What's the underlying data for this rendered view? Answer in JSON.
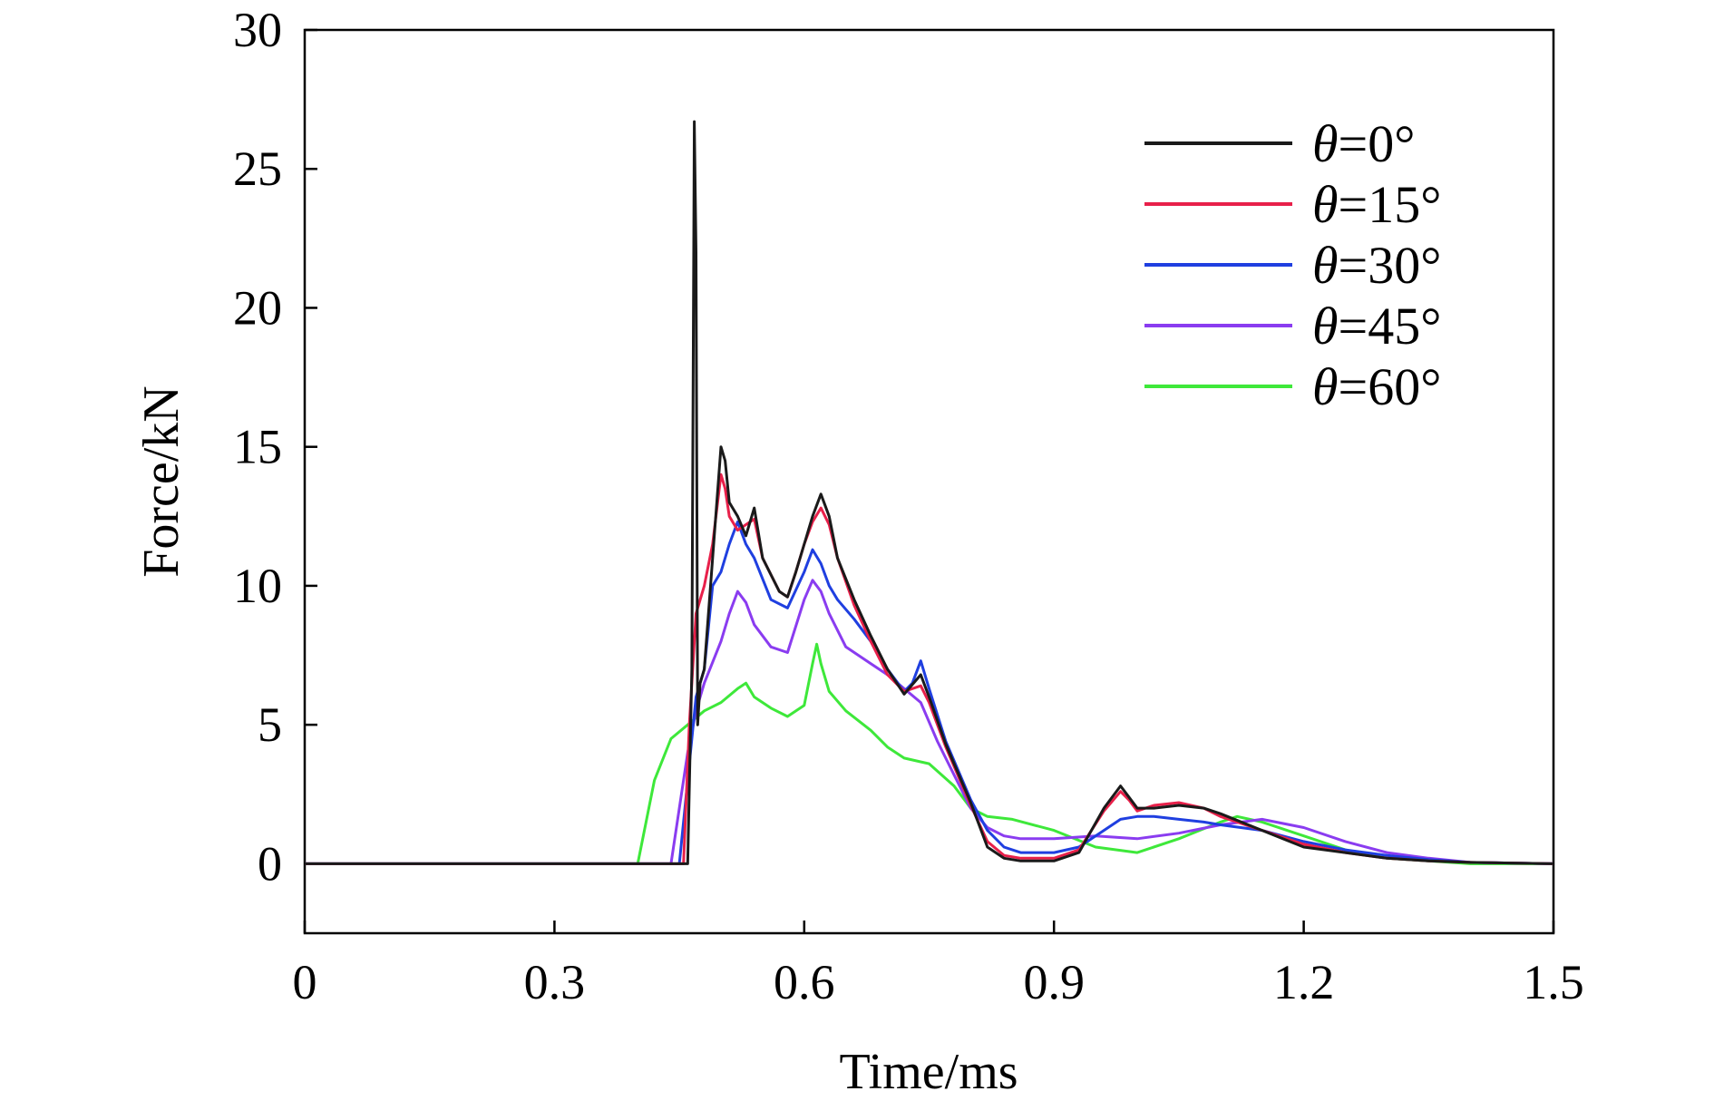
{
  "chart_data": {
    "type": "line",
    "title": "",
    "xlabel": "Time/ms",
    "ylabel": "Force/kN",
    "xlim": [
      0,
      1.5
    ],
    "ylim": [
      -2.5,
      30
    ],
    "xticks": [
      "0",
      "0.3",
      "0.6",
      "0.9",
      "1.2",
      "1.5"
    ],
    "xtick_values": [
      0,
      0.3,
      0.6,
      0.9,
      1.2,
      1.5
    ],
    "yticks": [
      "0",
      "5",
      "10",
      "15",
      "20",
      "25",
      "30"
    ],
    "ytick_values": [
      0,
      5,
      10,
      15,
      20,
      25,
      30
    ],
    "grid": false,
    "legend_position": "top-right",
    "series": [
      {
        "name": "θ=0°",
        "symbol": "θ",
        "value_text": "=0°",
        "color": "#1a1a1a",
        "x": [
          0,
          0.46,
          0.465,
          0.468,
          0.47,
          0.472,
          0.475,
          0.48,
          0.49,
          0.5,
          0.505,
          0.51,
          0.52,
          0.53,
          0.54,
          0.55,
          0.57,
          0.58,
          0.59,
          0.6,
          0.61,
          0.62,
          0.63,
          0.64,
          0.66,
          0.68,
          0.7,
          0.72,
          0.74,
          0.75,
          0.77,
          0.8,
          0.82,
          0.84,
          0.86,
          0.9,
          0.93,
          0.96,
          0.98,
          0.99,
          1.0,
          1.02,
          1.05,
          1.08,
          1.1,
          1.15,
          1.2,
          1.25,
          1.3,
          1.35,
          1.4,
          1.5
        ],
        "y": [
          0,
          0,
          7,
          26.7,
          22,
          5,
          6.5,
          7,
          11,
          15,
          14.5,
          13,
          12.5,
          11.8,
          12.8,
          11,
          9.8,
          9.6,
          10.5,
          11.5,
          12.5,
          13.3,
          12.5,
          11,
          9.5,
          8.2,
          7,
          6.1,
          6.8,
          6,
          4.3,
          2.2,
          0.6,
          0.2,
          0.1,
          0.1,
          0.4,
          2,
          2.8,
          2.4,
          2,
          2,
          2.1,
          2,
          1.8,
          1.2,
          0.6,
          0.4,
          0.2,
          0.1,
          0.05,
          0
        ]
      },
      {
        "name": "θ=15°",
        "symbol": "θ",
        "value_text": "=15°",
        "color": "#e8204a",
        "x": [
          0,
          0.455,
          0.462,
          0.47,
          0.48,
          0.49,
          0.5,
          0.505,
          0.51,
          0.52,
          0.53,
          0.54,
          0.55,
          0.57,
          0.58,
          0.59,
          0.6,
          0.61,
          0.62,
          0.63,
          0.64,
          0.66,
          0.68,
          0.7,
          0.72,
          0.74,
          0.75,
          0.77,
          0.8,
          0.82,
          0.84,
          0.86,
          0.9,
          0.93,
          0.96,
          0.98,
          0.99,
          1.0,
          1.02,
          1.05,
          1.08,
          1.1,
          1.15,
          1.2,
          1.25,
          1.3,
          1.35,
          1.4,
          1.5
        ],
        "y": [
          0,
          0,
          5,
          9,
          10,
          11.5,
          14,
          13.5,
          12.5,
          12,
          12.2,
          12.4,
          11,
          9.8,
          9.6,
          10.5,
          11.5,
          12.3,
          12.8,
          12.2,
          11,
          9.3,
          8,
          6.8,
          6.2,
          6.4,
          5.8,
          4.2,
          2.1,
          0.8,
          0.3,
          0.2,
          0.2,
          0.5,
          1.9,
          2.6,
          2.3,
          1.9,
          2.1,
          2.2,
          2,
          1.7,
          1.2,
          0.7,
          0.4,
          0.2,
          0.1,
          0.05,
          0
        ]
      },
      {
        "name": "θ=30°",
        "symbol": "θ",
        "value_text": "=30°",
        "color": "#1f3fe0",
        "x": [
          0,
          0.45,
          0.46,
          0.47,
          0.48,
          0.49,
          0.5,
          0.51,
          0.52,
          0.53,
          0.54,
          0.56,
          0.58,
          0.6,
          0.61,
          0.62,
          0.63,
          0.64,
          0.66,
          0.68,
          0.7,
          0.72,
          0.73,
          0.74,
          0.75,
          0.77,
          0.8,
          0.82,
          0.84,
          0.86,
          0.9,
          0.93,
          0.96,
          0.98,
          1.0,
          1.02,
          1.05,
          1.08,
          1.1,
          1.15,
          1.2,
          1.25,
          1.3,
          1.35,
          1.4,
          1.5
        ],
        "y": [
          0,
          0,
          3,
          6,
          7,
          10,
          10.5,
          11.5,
          12.3,
          11.5,
          11,
          9.5,
          9.2,
          10.5,
          11.3,
          10.8,
          10,
          9.5,
          8.8,
          8,
          7,
          6.2,
          6.5,
          7.3,
          6.3,
          4.4,
          2.3,
          1.2,
          0.6,
          0.4,
          0.4,
          0.6,
          1.2,
          1.6,
          1.7,
          1.7,
          1.6,
          1.5,
          1.4,
          1.2,
          0.8,
          0.5,
          0.3,
          0.15,
          0.05,
          0
        ]
      },
      {
        "name": "θ=45°",
        "symbol": "θ",
        "value_text": "=45°",
        "color": "#8a3cf0",
        "x": [
          0,
          0.44,
          0.45,
          0.46,
          0.47,
          0.48,
          0.5,
          0.51,
          0.52,
          0.53,
          0.54,
          0.56,
          0.58,
          0.6,
          0.61,
          0.62,
          0.63,
          0.65,
          0.68,
          0.7,
          0.72,
          0.74,
          0.76,
          0.78,
          0.8,
          0.82,
          0.84,
          0.86,
          0.9,
          0.95,
          1.0,
          1.05,
          1.1,
          1.15,
          1.2,
          1.25,
          1.3,
          1.35,
          1.4,
          1.5
        ],
        "y": [
          0,
          0,
          2,
          4,
          5.5,
          6.5,
          8,
          9,
          9.8,
          9.4,
          8.6,
          7.8,
          7.6,
          9.5,
          10.2,
          9.8,
          9,
          7.8,
          7.2,
          6.8,
          6.3,
          5.8,
          4.4,
          3.2,
          2,
          1.3,
          1,
          0.9,
          0.9,
          1,
          0.9,
          1.1,
          1.4,
          1.6,
          1.3,
          0.8,
          0.4,
          0.2,
          0.05,
          0
        ]
      },
      {
        "name": "θ=60°",
        "symbol": "θ",
        "value_text": "=60°",
        "color": "#3ee83a",
        "x": [
          0,
          0.4,
          0.41,
          0.42,
          0.44,
          0.46,
          0.48,
          0.5,
          0.52,
          0.53,
          0.54,
          0.56,
          0.58,
          0.6,
          0.61,
          0.615,
          0.62,
          0.63,
          0.65,
          0.68,
          0.7,
          0.72,
          0.75,
          0.78,
          0.8,
          0.82,
          0.85,
          0.9,
          0.95,
          1.0,
          1.05,
          1.1,
          1.12,
          1.15,
          1.2,
          1.25,
          1.3,
          1.35,
          1.4,
          1.5
        ],
        "y": [
          0,
          0,
          1.5,
          3,
          4.5,
          5,
          5.5,
          5.8,
          6.3,
          6.5,
          6,
          5.6,
          5.3,
          5.7,
          7.2,
          7.9,
          7.2,
          6.2,
          5.5,
          4.8,
          4.2,
          3.8,
          3.6,
          2.8,
          2,
          1.7,
          1.6,
          1.2,
          0.6,
          0.4,
          0.9,
          1.5,
          1.7,
          1.5,
          1,
          0.5,
          0.2,
          0.1,
          0,
          0
        ]
      }
    ]
  }
}
